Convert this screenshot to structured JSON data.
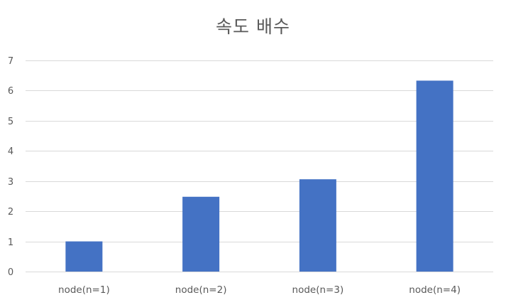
{
  "chart_data": {
    "type": "bar",
    "title": "속도 배수",
    "categories": [
      "node(n=1)",
      "node(n=2)",
      "node(n=3)",
      "node(n=4)"
    ],
    "values": [
      1.0,
      2.48,
      3.06,
      6.33
    ],
    "ylim": [
      0,
      7
    ],
    "yticks": [
      0,
      1,
      2,
      3,
      4,
      5,
      6,
      7
    ],
    "grid": true,
    "bar_color": "#4472c4",
    "grid_color": "#d9d9d9",
    "legend": "none"
  }
}
